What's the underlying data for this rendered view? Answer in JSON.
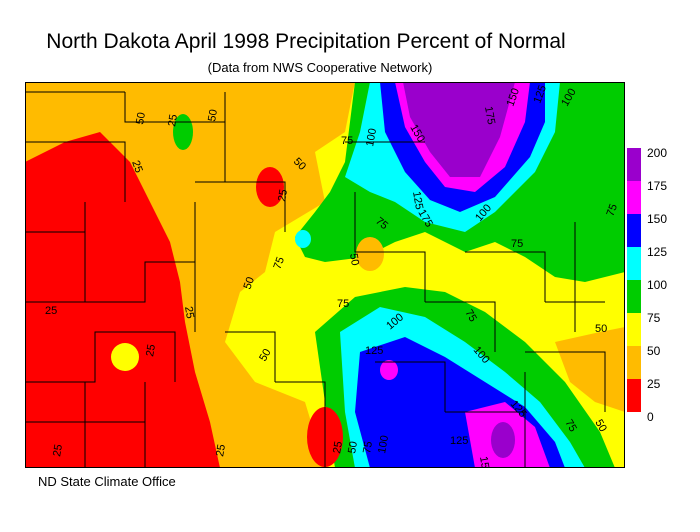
{
  "title": "North Dakota April 1998 Precipitation Percent of Normal",
  "subtitle": "(Data from NWS Cooperative Network)",
  "footer": "ND State Climate Office",
  "legend": {
    "labels": [
      "200",
      "175",
      "150",
      "125",
      "100",
      "75",
      "50",
      "25",
      "0"
    ],
    "colors": [
      "#9a00cc",
      "#ff00ff",
      "#0000ff",
      "#00ffff",
      "#00cc00",
      "#ffff00",
      "#ffbb00",
      "#ff0000"
    ]
  },
  "map_colors": {
    "red": "#ff0000",
    "orange": "#ffbb00",
    "yellow": "#ffff00",
    "green": "#00cc00",
    "cyan": "#00ffff",
    "blue": "#0000ff",
    "magenta": "#ff00ff",
    "purple": "#9a00cc"
  },
  "contour_labels": [
    "25",
    "50",
    "75",
    "100",
    "125",
    "150",
    "175"
  ]
}
